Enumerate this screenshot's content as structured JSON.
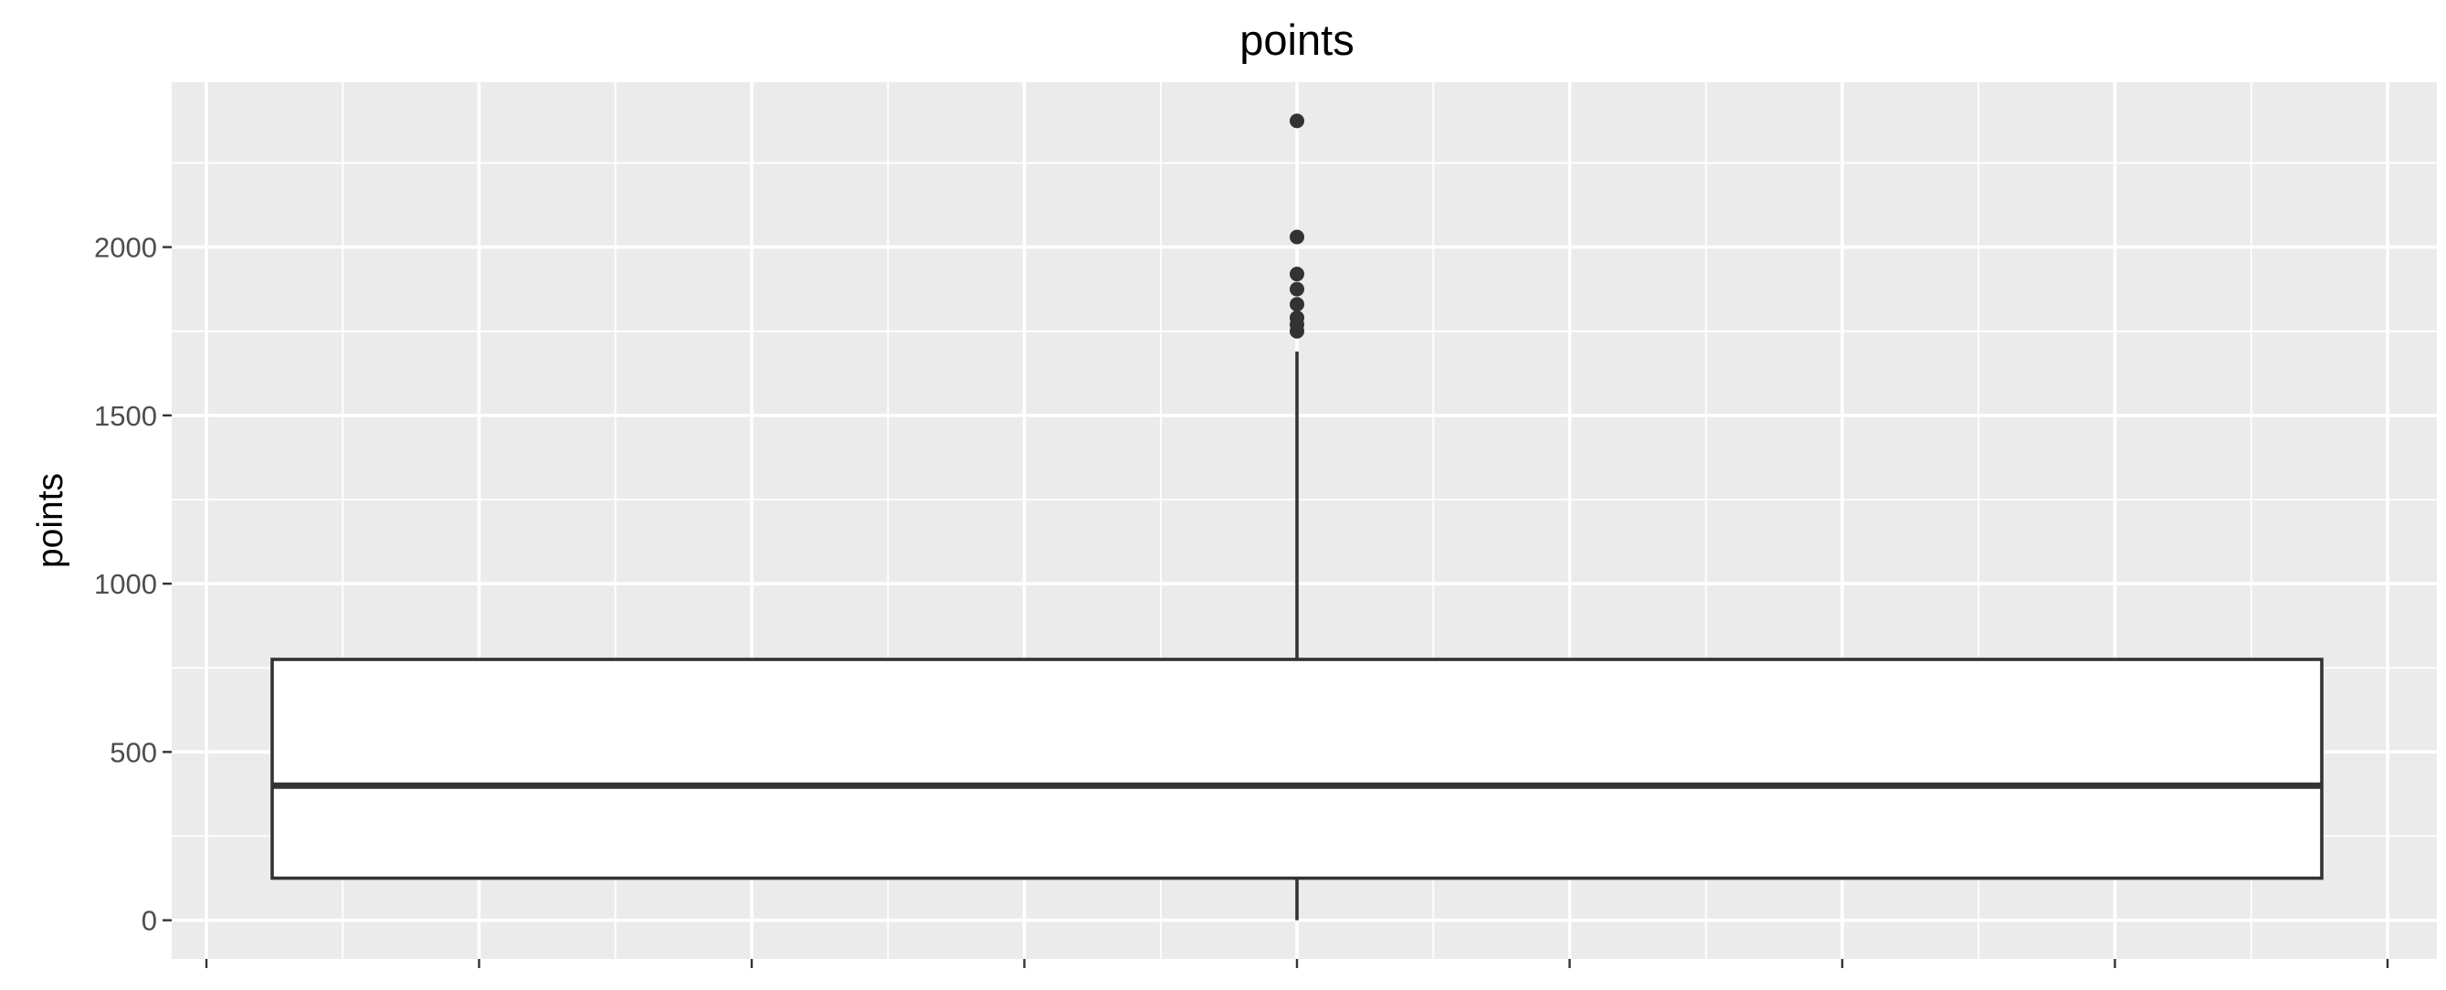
{
  "chart_data": {
    "type": "boxplot",
    "title": "points",
    "ylabel": "points",
    "xlabel": "",
    "ylim": [
      -115,
      2490
    ],
    "y_ticks": [
      0,
      500,
      1000,
      1500,
      2000
    ],
    "y_tick_labels": [
      "0",
      "500",
      "1000",
      "1500",
      "2000"
    ],
    "grid": true,
    "legend": "none",
    "boxes": [
      {
        "name": "",
        "min": 0,
        "q1": 125,
        "median": 400,
        "q3": 775,
        "max": 1690,
        "outliers": [
          1750,
          1770,
          1790,
          1830,
          1875,
          1920,
          2030,
          2375
        ]
      }
    ],
    "colors": {
      "panel": "#EBEBEB",
      "grid": "#FFFFFF",
      "box_fill": "#FFFFFF",
      "box_line": "#333333",
      "outlier": "#333333",
      "tick_label": "#4D4D4D"
    }
  }
}
